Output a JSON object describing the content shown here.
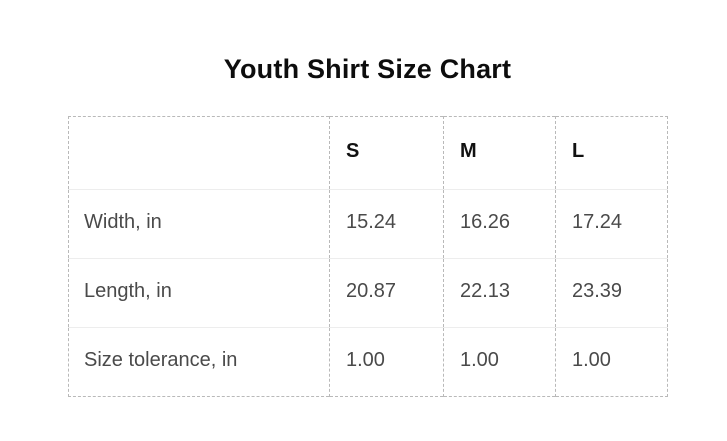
{
  "title": "Youth Shirt Size Chart",
  "table": {
    "corner": "",
    "columns": [
      "S",
      "M",
      "L"
    ],
    "rows": [
      {
        "label": "Width, in",
        "values": [
          "15.24",
          "16.26",
          "17.24"
        ]
      },
      {
        "label": "Length, in",
        "values": [
          "20.87",
          "22.13",
          "23.39"
        ]
      },
      {
        "label": "Size tolerance, in",
        "values": [
          "1.00",
          "1.00",
          "1.00"
        ]
      }
    ]
  },
  "chart_data": {
    "type": "table",
    "title": "Youth Shirt Size Chart",
    "categories": [
      "S",
      "M",
      "L"
    ],
    "series": [
      {
        "name": "Width, in",
        "values": [
          15.24,
          16.26,
          17.24
        ]
      },
      {
        "name": "Length, in",
        "values": [
          20.87,
          22.13,
          23.39
        ]
      },
      {
        "name": "Size tolerance, in",
        "values": [
          1.0,
          1.0,
          1.0
        ]
      }
    ]
  },
  "colors": {
    "title_text": "#0d0d0d",
    "header_text": "#111111",
    "body_text": "#4a4a4a",
    "dashed_border": "#b9b9b9",
    "row_divider": "#ededed",
    "background": "#ffffff"
  }
}
